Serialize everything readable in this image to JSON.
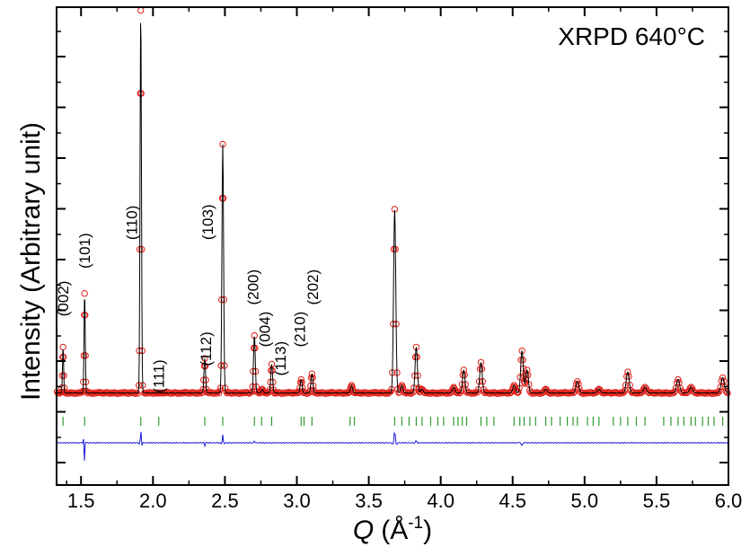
{
  "chart_data": {
    "type": "scatter",
    "title": "",
    "annotation": "XRPD 640°C",
    "xlabel_main": "Q",
    "xlabel_unit": "(Å",
    "xlabel_sup": "-1",
    "xlabel_close": ")",
    "ylabel": "Intensity (Arbitrary unit)",
    "xlim": [
      1.33,
      6.0
    ],
    "x_ticks": [
      1.5,
      2.0,
      2.5,
      3.0,
      3.5,
      4.0,
      4.5,
      5.0,
      5.5,
      6.0
    ],
    "x_tick_labels": [
      "1.5",
      "2.0",
      "2.5",
      "3.0",
      "3.5",
      "4.0",
      "4.5",
      "5.0",
      "5.5",
      "6.0"
    ],
    "y_tick_labels_shown": false,
    "legend": "none",
    "grid": false,
    "colors": {
      "observed": "#e0201a",
      "calculated": "#000000",
      "difference": "#1a1adb",
      "bragg_ticks": "#2e9a2e"
    },
    "background_level": 0.02,
    "peaks": [
      {
        "q": 1.375,
        "height": 0.12
      },
      {
        "q": 1.525,
        "height": 0.26
      },
      {
        "q": 1.915,
        "height": 1.0
      },
      {
        "q": 2.04,
        "height": 0.0
      },
      {
        "q": 2.36,
        "height": 0.09
      },
      {
        "q": 2.485,
        "height": 0.65
      },
      {
        "q": 2.705,
        "height": 0.15
      },
      {
        "q": 2.76,
        "height": 0.01
      },
      {
        "q": 2.825,
        "height": 0.075
      },
      {
        "q": 3.03,
        "height": 0.035
      },
      {
        "q": 3.105,
        "height": 0.05
      },
      {
        "q": 3.38,
        "height": 0.02
      },
      {
        "q": 3.68,
        "height": 0.48
      },
      {
        "q": 3.73,
        "height": 0.02
      },
      {
        "q": 3.83,
        "height": 0.12
      },
      {
        "q": 3.87,
        "height": 0.01
      },
      {
        "q": 4.09,
        "height": 0.015
      },
      {
        "q": 4.16,
        "height": 0.06
      },
      {
        "q": 4.28,
        "height": 0.08
      },
      {
        "q": 4.51,
        "height": 0.02
      },
      {
        "q": 4.565,
        "height": 0.11
      },
      {
        "q": 4.6,
        "height": 0.06
      },
      {
        "q": 4.73,
        "height": 0.01
      },
      {
        "q": 4.95,
        "height": 0.03
      },
      {
        "q": 5.1,
        "height": 0.01
      },
      {
        "q": 5.3,
        "height": 0.055
      },
      {
        "q": 5.42,
        "height": 0.015
      },
      {
        "q": 5.65,
        "height": 0.035
      },
      {
        "q": 5.74,
        "height": 0.015
      },
      {
        "q": 5.96,
        "height": 0.04
      }
    ],
    "peak_labels": [
      {
        "text": "(002)",
        "q": 1.375,
        "height": 0.22
      },
      {
        "text": "(101)",
        "q": 1.525,
        "height": 0.345
      },
      {
        "text": "(110)",
        "q": 1.85,
        "height": 0.42
      },
      {
        "text": "(111)",
        "q": 2.04,
        "height": 0.02
      },
      {
        "text": "(112)",
        "q": 2.365,
        "height": 0.09
      },
      {
        "text": "(103)",
        "q": 2.38,
        "height": 0.42
      },
      {
        "text": "(200)",
        "q": 2.695,
        "height": 0.25
      },
      {
        "text": "(004)",
        "q": 2.775,
        "height": 0.14
      },
      {
        "text": "(113)",
        "q": 2.885,
        "height": 0.065
      },
      {
        "text": "(210)",
        "q": 3.02,
        "height": 0.14
      },
      {
        "text": "(202)",
        "q": 3.11,
        "height": 0.25
      }
    ],
    "bragg_ticks_q": [
      1.375,
      1.525,
      1.915,
      2.04,
      2.36,
      2.485,
      2.705,
      2.755,
      2.825,
      3.03,
      3.05,
      3.105,
      3.37,
      3.4,
      3.68,
      3.73,
      3.78,
      3.83,
      3.87,
      3.93,
      3.98,
      4.02,
      4.09,
      4.12,
      4.15,
      4.18,
      4.28,
      4.32,
      4.37,
      4.51,
      4.55,
      4.58,
      4.62,
      4.66,
      4.73,
      4.77,
      4.83,
      4.88,
      4.92,
      4.95,
      5.02,
      5.06,
      5.1,
      5.2,
      5.25,
      5.3,
      5.36,
      5.42,
      5.55,
      5.6,
      5.65,
      5.69,
      5.74,
      5.77,
      5.82,
      5.86,
      5.9,
      5.96
    ],
    "difference_spikes": [
      {
        "q": 1.525,
        "value": -0.22
      },
      {
        "q": 1.915,
        "value": 0.14
      },
      {
        "q": 2.36,
        "value": -0.03
      },
      {
        "q": 2.485,
        "value": 0.08
      },
      {
        "q": 2.705,
        "value": 0.02
      },
      {
        "q": 3.68,
        "value": 0.12
      },
      {
        "q": 3.83,
        "value": 0.02
      },
      {
        "q": 4.565,
        "value": -0.03
      }
    ]
  }
}
